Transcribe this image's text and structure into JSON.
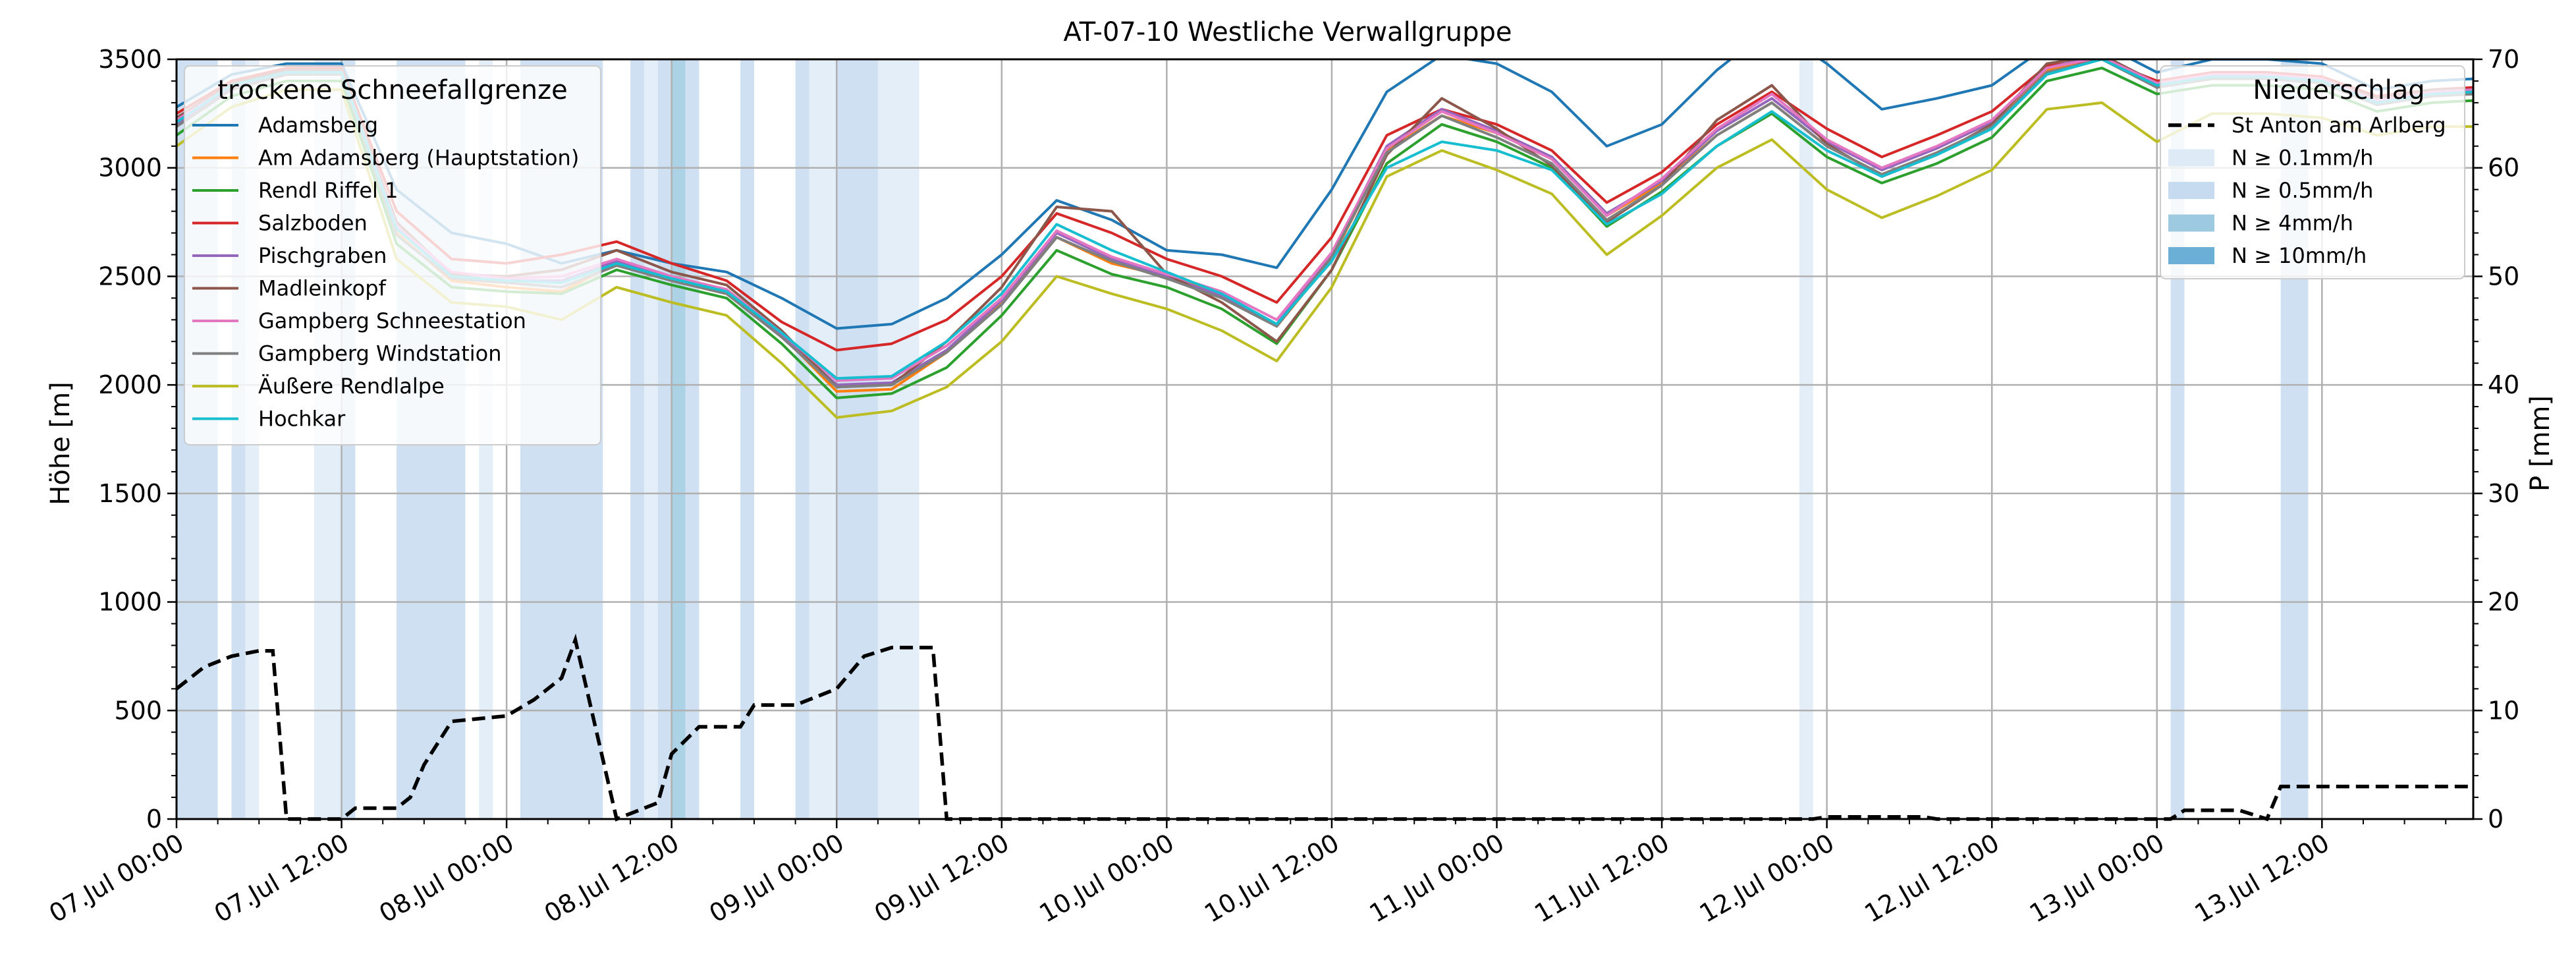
{
  "chart_data": {
    "type": "line",
    "title": "AT-07-10 Westliche Verwallgruppe",
    "ylabel_left": "Höhe [m]",
    "ylabel_right": "P [mm]",
    "ylim_left": [
      0,
      3500
    ],
    "ylim_right": [
      0,
      70
    ],
    "yticks_left": [
      "0",
      "500",
      "1000",
      "1500",
      "2000",
      "2500",
      "3000",
      "3500"
    ],
    "yticks_right": [
      "0",
      "10",
      "20",
      "30",
      "40",
      "50",
      "60",
      "70"
    ],
    "xlim_hours": [
      0,
      167
    ],
    "xticks": [
      {
        "h": 0,
        "label": "07.Jul 00:00"
      },
      {
        "h": 12,
        "label": "07.Jul 12:00"
      },
      {
        "h": 24,
        "label": "08.Jul 00:00"
      },
      {
        "h": 36,
        "label": "08.Jul 12:00"
      },
      {
        "h": 48,
        "label": "09.Jul 00:00"
      },
      {
        "h": 60,
        "label": "09.Jul 12:00"
      },
      {
        "h": 72,
        "label": "10.Jul 00:00"
      },
      {
        "h": 84,
        "label": "10.Jul 12:00"
      },
      {
        "h": 96,
        "label": "11.Jul 00:00"
      },
      {
        "h": 108,
        "label": "11.Jul 12:00"
      },
      {
        "h": 120,
        "label": "12.Jul 00:00"
      },
      {
        "h": 132,
        "label": "12.Jul 12:00"
      },
      {
        "h": 144,
        "label": "13.Jul 00:00"
      },
      {
        "h": 156,
        "label": "13.Jul 12:00"
      }
    ],
    "grid": true,
    "legend_left": {
      "title": "trockene Schneefallgrenze",
      "placement": "top-left"
    },
    "legend_right": {
      "title": "Niederschlag",
      "placement": "top-right",
      "entries": [
        {
          "label": "St Anton am Arlberg",
          "style": "dashed",
          "color": "#000000"
        },
        {
          "label": "N ≥ 0.1mm/h",
          "color": "#deebf7"
        },
        {
          "label": "N ≥ 0.5mm/h",
          "color": "#c6dbef"
        },
        {
          "label": "N ≥ 4mm/h",
          "color": "#9ecae1"
        },
        {
          "label": "N ≥ 10mm/h",
          "color": "#6baed6"
        }
      ]
    },
    "x_hours": [
      0,
      4,
      8,
      12,
      16,
      20,
      24,
      28,
      32,
      36,
      40,
      44,
      48,
      52,
      56,
      60,
      64,
      68,
      72,
      76,
      80,
      84,
      88,
      92,
      96,
      100,
      104,
      108,
      112,
      116,
      120,
      124,
      128,
      132,
      136,
      140,
      144,
      148,
      152,
      156,
      160,
      164,
      167
    ],
    "series": [
      {
        "name": "Adamsberg",
        "color": "#1f77b4",
        "values": [
          3280,
          3430,
          3480,
          3480,
          2900,
          2700,
          2650,
          2560,
          2620,
          2560,
          2520,
          2400,
          2260,
          2280,
          2400,
          2600,
          2850,
          2760,
          2620,
          2600,
          2540,
          2900,
          3350,
          3520,
          3480,
          3350,
          3100,
          3200,
          3450,
          3650,
          3480,
          3270,
          3320,
          3380,
          3560,
          3570,
          3440,
          3500,
          3500,
          3480,
          3360,
          3400,
          3410
        ]
      },
      {
        "name": "Am Adamsberg (Hauptstation)",
        "color": "#ff7f0e",
        "values": [
          3200,
          3380,
          3450,
          3450,
          2700,
          2480,
          2450,
          2430,
          2560,
          2480,
          2420,
          2230,
          1970,
          1980,
          2150,
          2380,
          2680,
          2560,
          2500,
          2420,
          2270,
          2580,
          3080,
          3240,
          3160,
          3050,
          2780,
          2930,
          3150,
          3300,
          3100,
          2970,
          3070,
          3190,
          3450,
          3510,
          3380,
          3420,
          3420,
          3400,
          3300,
          3340,
          3350
        ]
      },
      {
        "name": "Rendl Riffel 1",
        "color": "#2ca02c",
        "values": [
          3150,
          3330,
          3400,
          3400,
          2650,
          2450,
          2430,
          2420,
          2530,
          2460,
          2400,
          2190,
          1940,
          1960,
          2080,
          2320,
          2620,
          2510,
          2450,
          2350,
          2190,
          2530,
          3020,
          3200,
          3120,
          3000,
          2730,
          2890,
          3100,
          3250,
          3050,
          2930,
          3020,
          3140,
          3400,
          3460,
          3340,
          3380,
          3380,
          3360,
          3260,
          3300,
          3310
        ]
      },
      {
        "name": "Salzboden",
        "color": "#d62728",
        "values": [
          3250,
          3400,
          3460,
          3460,
          2800,
          2580,
          2560,
          2600,
          2660,
          2560,
          2480,
          2290,
          2160,
          2190,
          2300,
          2500,
          2790,
          2700,
          2580,
          2500,
          2380,
          2680,
          3150,
          3270,
          3200,
          3080,
          2840,
          2980,
          3200,
          3350,
          3180,
          3050,
          3150,
          3260,
          3470,
          3500,
          3400,
          3440,
          3440,
          3420,
          3330,
          3360,
          3370
        ]
      },
      {
        "name": "Pischgraben",
        "color": "#9467bd",
        "values": [
          3200,
          3370,
          3440,
          3440,
          2720,
          2500,
          2480,
          2480,
          2570,
          2490,
          2430,
          2230,
          2000,
          2010,
          2160,
          2390,
          2700,
          2580,
          2500,
          2410,
          2280,
          2600,
          3100,
          3270,
          3170,
          3050,
          2790,
          2940,
          3170,
          3320,
          3120,
          2990,
          3090,
          3210,
          3460,
          3520,
          3390,
          3430,
          3430,
          3410,
          3310,
          3350,
          3360
        ]
      },
      {
        "name": "Madleinkopf",
        "color": "#8c564b",
        "values": [
          3230,
          3390,
          3450,
          3450,
          2750,
          2510,
          2500,
          2530,
          2620,
          2520,
          2460,
          2250,
          1990,
          2000,
          2200,
          2450,
          2820,
          2800,
          2510,
          2380,
          2200,
          2530,
          3060,
          3320,
          3180,
          3010,
          2750,
          2920,
          3220,
          3380,
          3110,
          2960,
          3060,
          3200,
          3480,
          3520,
          3390,
          3430,
          3430,
          3410,
          3320,
          3360,
          3360
        ]
      },
      {
        "name": "Gampberg Schneestation",
        "color": "#e377c2",
        "values": [
          3220,
          3380,
          3440,
          3440,
          2730,
          2520,
          2490,
          2500,
          2580,
          2500,
          2440,
          2240,
          2020,
          2030,
          2180,
          2400,
          2710,
          2590,
          2510,
          2430,
          2300,
          2610,
          3090,
          3260,
          3160,
          3040,
          2780,
          2950,
          3180,
          3340,
          3130,
          3000,
          3100,
          3220,
          3460,
          3510,
          3390,
          3430,
          3430,
          3410,
          3310,
          3350,
          3360
        ]
      },
      {
        "name": "Gampberg Windstation",
        "color": "#7f7f7f",
        "values": [
          3190,
          3360,
          3430,
          3430,
          2690,
          2490,
          2470,
          2450,
          2550,
          2480,
          2420,
          2220,
          1990,
          2000,
          2150,
          2370,
          2680,
          2570,
          2490,
          2400,
          2270,
          2590,
          3070,
          3240,
          3140,
          3020,
          2760,
          2920,
          3150,
          3300,
          3100,
          2970,
          3070,
          3190,
          3440,
          3500,
          3370,
          3410,
          3410,
          3390,
          3290,
          3330,
          3340
        ]
      },
      {
        "name": "Äußere Rendlalpe",
        "color": "#bcbd22",
        "values": [
          3100,
          3280,
          3360,
          3360,
          2580,
          2380,
          2360,
          2300,
          2450,
          2380,
          2320,
          2100,
          1850,
          1880,
          1990,
          2200,
          2500,
          2420,
          2350,
          2250,
          2110,
          2450,
          2960,
          3080,
          2990,
          2880,
          2600,
          2780,
          3000,
          3130,
          2900,
          2770,
          2870,
          2990,
          3270,
          3300,
          3120,
          3250,
          3250,
          3230,
          3150,
          3190,
          3190
        ]
      },
      {
        "name": "Hochkar",
        "color": "#17becf",
        "values": [
          3210,
          3380,
          3440,
          3440,
          2720,
          2500,
          2480,
          2470,
          2560,
          2490,
          2430,
          2240,
          2030,
          2040,
          2200,
          2420,
          2740,
          2620,
          2520,
          2420,
          2280,
          2570,
          3000,
          3120,
          3080,
          2990,
          2740,
          2880,
          3100,
          3260,
          3080,
          2960,
          3060,
          3180,
          3430,
          3500,
          3380,
          3420,
          3420,
          3400,
          3300,
          3340,
          3350
        ]
      }
    ],
    "precip_series": {
      "name": "St Anton am Arlberg",
      "unit": "mm",
      "points": [
        [
          0,
          12
        ],
        [
          2,
          14
        ],
        [
          4,
          15
        ],
        [
          6,
          15.5
        ],
        [
          7,
          15.5
        ],
        [
          8,
          0
        ],
        [
          12,
          0
        ],
        [
          13,
          1
        ],
        [
          16,
          1
        ],
        [
          17,
          2
        ],
        [
          18,
          5
        ],
        [
          20,
          9
        ],
        [
          24,
          9.5
        ],
        [
          26,
          11
        ],
        [
          28,
          13
        ],
        [
          29,
          16.5
        ],
        [
          32,
          0
        ],
        [
          35,
          1.5
        ],
        [
          36,
          6
        ],
        [
          38,
          8.5
        ],
        [
          41,
          8.5
        ],
        [
          42,
          10.5
        ],
        [
          45,
          10.5
        ],
        [
          48,
          12
        ],
        [
          50,
          15
        ],
        [
          52,
          15.8
        ],
        [
          55,
          15.8
        ],
        [
          56,
          0
        ],
        [
          119,
          0
        ],
        [
          120,
          0.2
        ],
        [
          127,
          0.2
        ],
        [
          128,
          0
        ],
        [
          145,
          0
        ],
        [
          146,
          0.8
        ],
        [
          150,
          0.8
        ],
        [
          152,
          0
        ],
        [
          153,
          3
        ],
        [
          167,
          3
        ]
      ]
    },
    "precip_bands": [
      {
        "from": 0,
        "to": 3,
        "level": "0.5"
      },
      {
        "from": 4,
        "to": 5,
        "level": "0.5"
      },
      {
        "from": 5,
        "to": 6,
        "level": "0.1"
      },
      {
        "from": 10,
        "to": 12,
        "level": "0.1"
      },
      {
        "from": 12,
        "to": 13,
        "level": "0.5"
      },
      {
        "from": 16,
        "to": 21,
        "level": "0.5"
      },
      {
        "from": 22,
        "to": 23,
        "level": "0.1"
      },
      {
        "from": 25,
        "to": 31,
        "level": "0.5"
      },
      {
        "from": 33,
        "to": 34,
        "level": "0.5"
      },
      {
        "from": 34,
        "to": 35,
        "level": "0.1"
      },
      {
        "from": 35,
        "to": 36,
        "level": "0.5"
      },
      {
        "from": 36,
        "to": 37,
        "level": "4"
      },
      {
        "from": 37,
        "to": 38,
        "level": "0.5"
      },
      {
        "from": 41,
        "to": 42,
        "level": "0.5"
      },
      {
        "from": 45,
        "to": 46,
        "level": "0.5"
      },
      {
        "from": 46,
        "to": 48,
        "level": "0.1"
      },
      {
        "from": 48,
        "to": 51,
        "level": "0.5"
      },
      {
        "from": 51,
        "to": 54,
        "level": "0.1"
      },
      {
        "from": 118,
        "to": 119,
        "level": "0.1"
      },
      {
        "from": 145,
        "to": 146,
        "level": "0.5"
      },
      {
        "from": 153,
        "to": 155,
        "level": "0.5"
      }
    ]
  }
}
